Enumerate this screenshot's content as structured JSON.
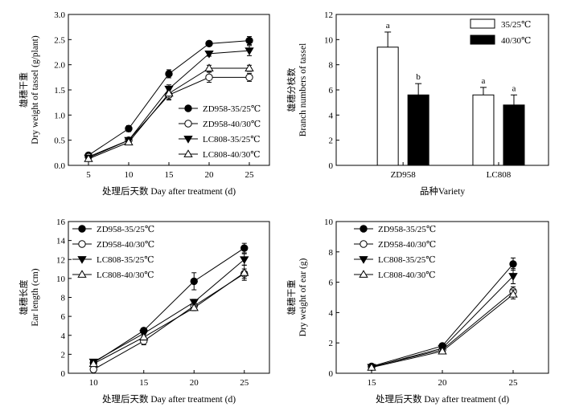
{
  "chart_data": [
    {
      "type": "line",
      "xlabel": "处理后天数 Day after treatment (d)",
      "ylabel_cn": "雄穗干重",
      "ylabel": "Dry weight of tassel (g/plant)",
      "x": [
        5,
        10,
        15,
        20,
        25
      ],
      "xlim": [
        2.5,
        27.5
      ],
      "ylim": [
        0,
        3.0
      ],
      "yticks": [
        "0.0",
        "0.5",
        "1.0",
        "1.5",
        "2.0",
        "2.5",
        "3.0"
      ],
      "legend_position": "bottom-right",
      "series": [
        {
          "name": "ZD958-35/25℃",
          "marker": "circle-filled",
          "values": [
            0.2,
            0.73,
            1.82,
            2.42,
            2.48
          ],
          "err": [
            0.03,
            0.06,
            0.08,
            0.04,
            0.08
          ]
        },
        {
          "name": "ZD958-40/30℃",
          "marker": "circle-open",
          "values": [
            0.17,
            0.5,
            1.4,
            1.75,
            1.75
          ],
          "err": [
            0.02,
            0.04,
            0.1,
            0.1,
            0.08
          ]
        },
        {
          "name": "LC808-35/25℃",
          "marker": "triangle-down-filled",
          "values": [
            0.15,
            0.5,
            1.52,
            2.22,
            2.28
          ],
          "err": [
            0.02,
            0.04,
            0.08,
            0.05,
            0.1
          ]
        },
        {
          "name": "LC808-40/30℃",
          "marker": "triangle-up-open",
          "values": [
            0.13,
            0.46,
            1.43,
            1.93,
            1.93
          ],
          "err": [
            0.02,
            0.03,
            0.12,
            0.06,
            0.06
          ]
        }
      ]
    },
    {
      "type": "bar",
      "xlabel": "品种Variety",
      "ylabel_cn": "雄穗分枝数",
      "ylabel": "Branch numbers of tassel",
      "categories": [
        "ZD958",
        "LC808"
      ],
      "ylim": [
        0,
        12
      ],
      "yticks": [
        "0",
        "2",
        "4",
        "6",
        "8",
        "10",
        "12"
      ],
      "legend_position": "top-right",
      "series": [
        {
          "name": "35/25℃",
          "fill": "#ffffff",
          "values": [
            9.4,
            5.6
          ],
          "err": [
            1.2,
            0.6
          ],
          "letters": [
            "a",
            "a"
          ]
        },
        {
          "name": "40/30℃",
          "fill": "#000000",
          "values": [
            5.6,
            4.8
          ],
          "err": [
            0.9,
            0.8
          ],
          "letters": [
            "b",
            "a"
          ]
        }
      ]
    },
    {
      "type": "line",
      "xlabel": "处理后天数 Day after treatment (d)",
      "ylabel_cn": "雄穗长度",
      "ylabel": "Ear length (cm)",
      "x": [
        10,
        15,
        20,
        25
      ],
      "xlim": [
        7.5,
        27.5
      ],
      "ylim": [
        0,
        16
      ],
      "yticks": [
        "0",
        "2",
        "4",
        "6",
        "8",
        "10",
        "12",
        "14",
        "16"
      ],
      "legend_position": "top-left",
      "series": [
        {
          "name": "ZD958-35/25℃",
          "marker": "circle-filled",
          "values": [
            1.1,
            4.5,
            9.7,
            13.2
          ],
          "err": [
            0.15,
            0.25,
            0.9,
            0.5
          ]
        },
        {
          "name": "ZD958-40/30℃",
          "marker": "circle-open",
          "values": [
            0.4,
            3.4,
            7.1,
            10.5
          ],
          "err": [
            0.1,
            0.4,
            0.4,
            0.5
          ]
        },
        {
          "name": "LC808-35/25℃",
          "marker": "triangle-down-filled",
          "values": [
            1.2,
            4.2,
            7.5,
            12.0
          ],
          "err": [
            0.15,
            0.3,
            0.3,
            0.6
          ]
        },
        {
          "name": "LC808-40/30℃",
          "marker": "triangle-up-open",
          "values": [
            1.0,
            3.8,
            6.9,
            10.6
          ],
          "err": [
            0.1,
            0.3,
            0.3,
            0.8
          ]
        }
      ]
    },
    {
      "type": "line",
      "xlabel": "处理后天数 Day after treatment (d)",
      "ylabel_cn": "雄穗干重",
      "ylabel": "Dry weight of ear (g)",
      "x": [
        15,
        20,
        25
      ],
      "xlim": [
        12.5,
        27.5
      ],
      "ylim": [
        0,
        10
      ],
      "yticks": [
        "0",
        "2",
        "4",
        "6",
        "8",
        "10"
      ],
      "legend_position": "top-left",
      "series": [
        {
          "name": "ZD958-35/25℃",
          "marker": "circle-filled",
          "values": [
            0.45,
            1.8,
            7.2
          ],
          "err": [
            0.05,
            0.12,
            0.4
          ]
        },
        {
          "name": "ZD958-40/30℃",
          "marker": "circle-open",
          "values": [
            0.42,
            1.55,
            5.4
          ],
          "err": [
            0.05,
            0.1,
            0.3
          ]
        },
        {
          "name": "LC808-35/25℃",
          "marker": "triangle-down-filled",
          "values": [
            0.4,
            1.65,
            6.4
          ],
          "err": [
            0.05,
            0.1,
            0.5
          ]
        },
        {
          "name": "LC808-40/30℃",
          "marker": "triangle-up-open",
          "values": [
            0.38,
            1.45,
            5.2
          ],
          "err": [
            0.05,
            0.08,
            0.3
          ]
        }
      ]
    }
  ]
}
